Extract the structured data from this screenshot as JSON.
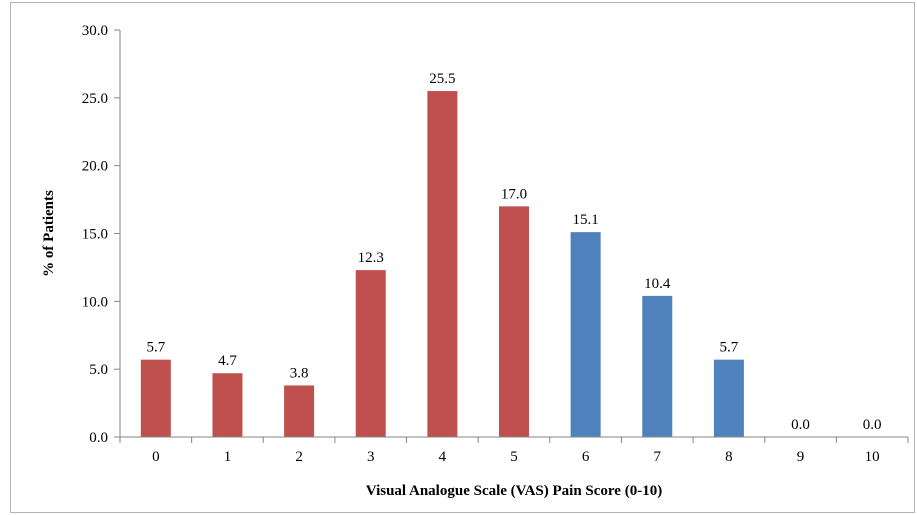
{
  "chart_data": {
    "type": "bar",
    "title": "",
    "xlabel": "Visual Analogue Scale (VAS) Pain Score (0-10)",
    "ylabel": "% of Patients",
    "categories": [
      "0",
      "1",
      "2",
      "3",
      "4",
      "5",
      "6",
      "7",
      "8",
      "9",
      "10"
    ],
    "values": [
      5.7,
      4.7,
      3.8,
      12.3,
      25.5,
      17.0,
      15.1,
      10.4,
      5.7,
      0.0,
      0.0
    ],
    "value_labels": [
      "5.7",
      "4.7",
      "3.8",
      "12.3",
      "25.5",
      "17.0",
      "15.1",
      "10.4",
      "5.7",
      "0.0",
      "0.0"
    ],
    "bar_colors": [
      "#c0504d",
      "#c0504d",
      "#c0504d",
      "#c0504d",
      "#c0504d",
      "#c0504d",
      "#4f81bd",
      "#4f81bd",
      "#4f81bd",
      "#4f81bd",
      "#4f81bd"
    ],
    "ylim": [
      0,
      30
    ],
    "yticks": [
      "0.0",
      "5.0",
      "10.0",
      "15.0",
      "20.0",
      "25.0",
      "30.0"
    ],
    "grid": false,
    "legend": "none"
  }
}
